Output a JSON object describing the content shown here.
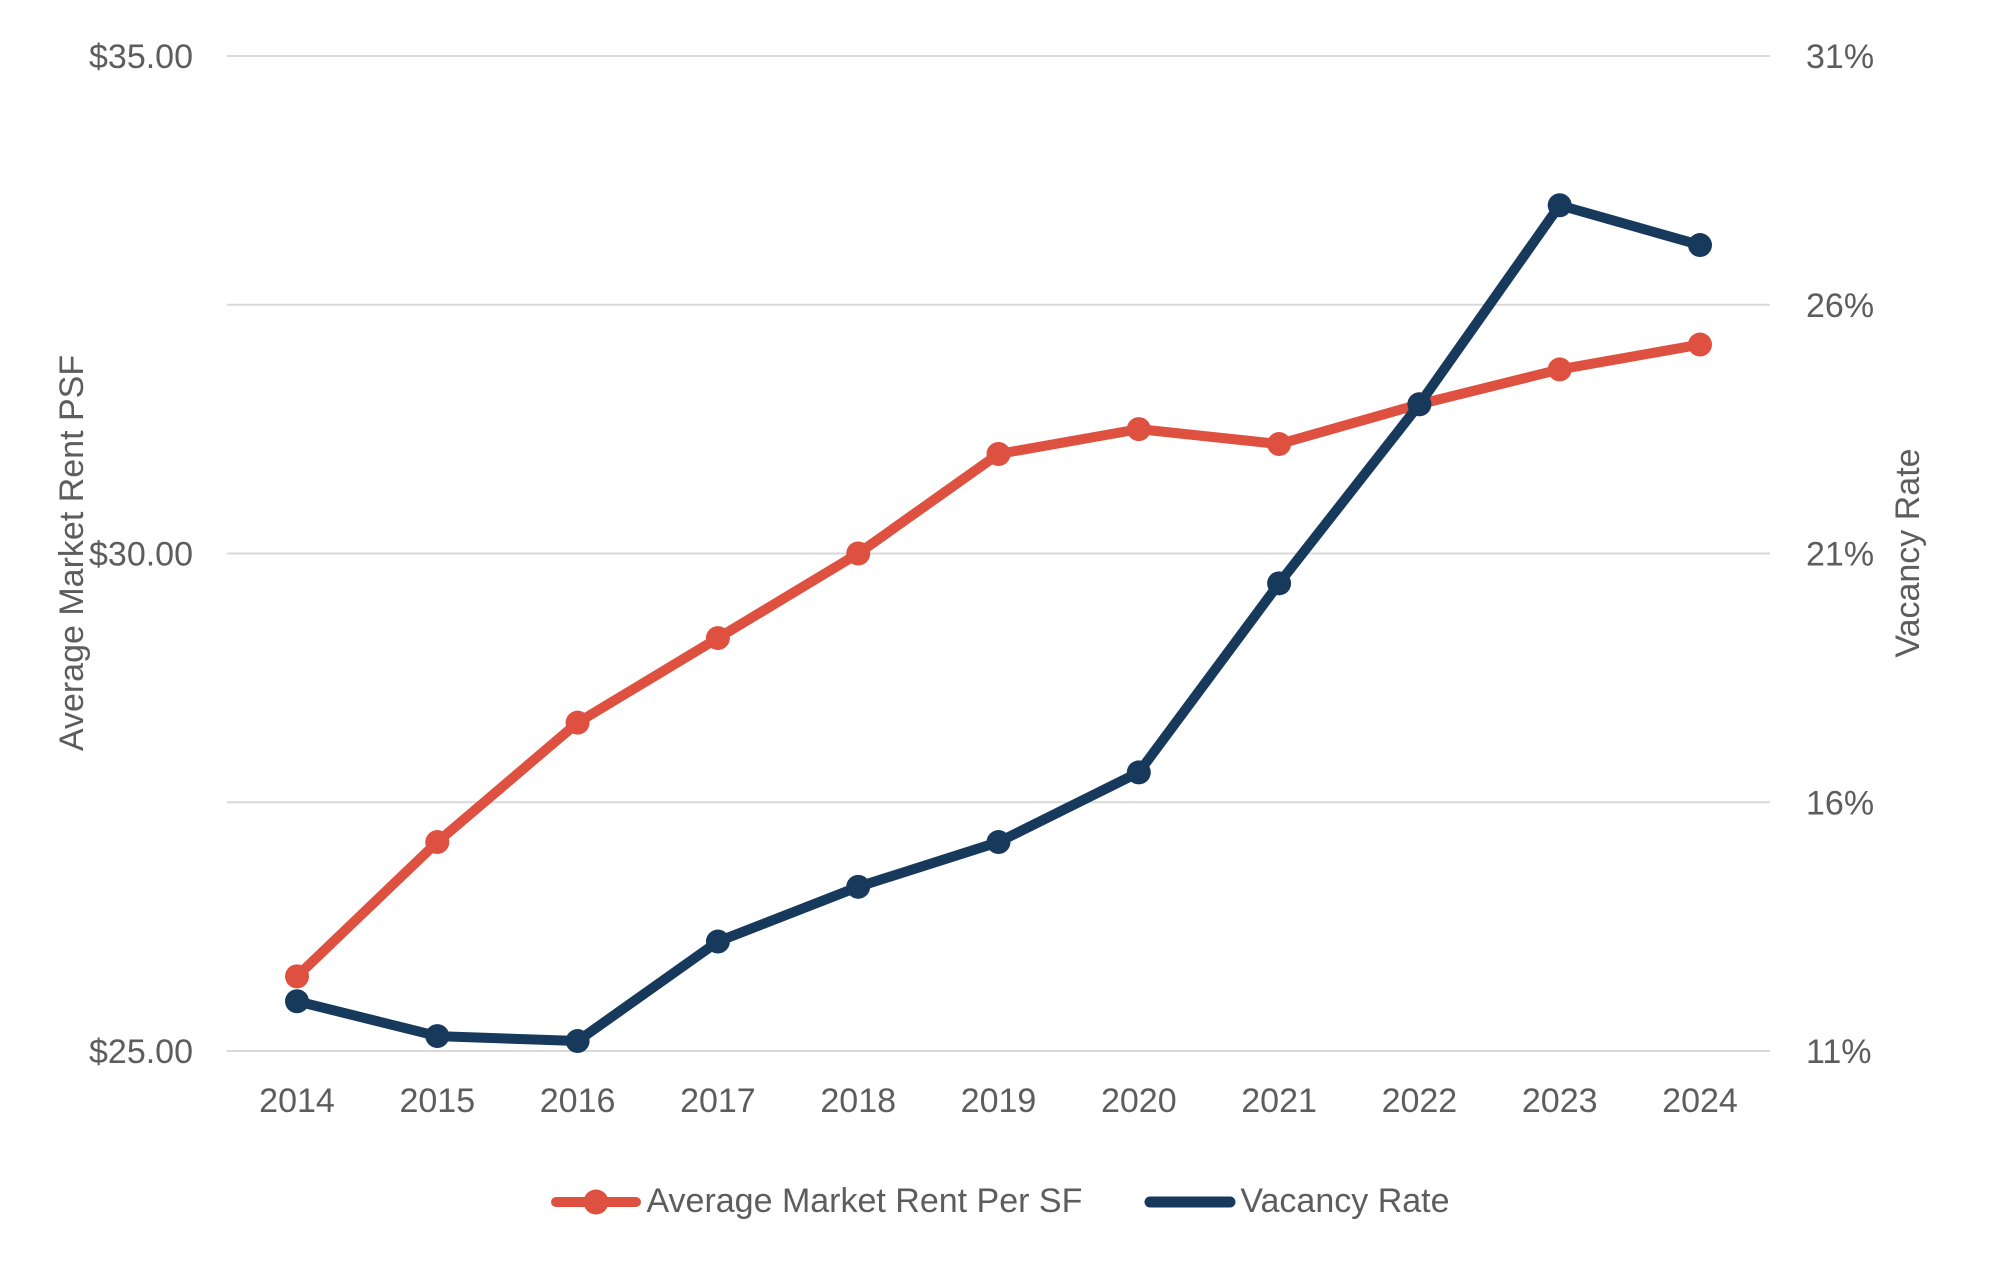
{
  "chart_data": {
    "type": "line",
    "title": "",
    "categories": [
      "2014",
      "2015",
      "2016",
      "2017",
      "2018",
      "2019",
      "2020",
      "2021",
      "2022",
      "2023",
      "2024"
    ],
    "series": [
      {
        "name": "Average Market Rent Per SF",
        "axis": "left",
        "color": "#de5140",
        "marker": "circle",
        "values": [
          25.75,
          27.1,
          28.3,
          29.15,
          30.0,
          31.0,
          31.25,
          31.1,
          31.5,
          31.85,
          32.1
        ]
      },
      {
        "name": "Vacancy Rate",
        "axis": "right",
        "color": "#17395c",
        "marker": "circle",
        "values": [
          12.0,
          11.3,
          11.2,
          13.2,
          14.3,
          15.2,
          16.6,
          20.4,
          24.0,
          28.0,
          27.2
        ]
      }
    ],
    "left_axis": {
      "title": "Average Market Rent PSF",
      "min": 25,
      "max": 35,
      "gridline_divisions": 4,
      "tick_values": [
        25,
        30,
        35
      ],
      "tick_labels": [
        "$25.00",
        "$30.00",
        "$35.00"
      ]
    },
    "right_axis": {
      "title": "Vacancy Rate",
      "min": 11,
      "max": 31,
      "tick_values": [
        11,
        16,
        21,
        26,
        31
      ],
      "tick_labels": [
        "11%",
        "16%",
        "21%",
        "26%",
        "31%"
      ]
    },
    "grid": true,
    "legend_position": "bottom"
  },
  "styles": {
    "grid_color": "#d9d9d9",
    "text_color": "#5d5d5d",
    "background": "#ffffff"
  }
}
